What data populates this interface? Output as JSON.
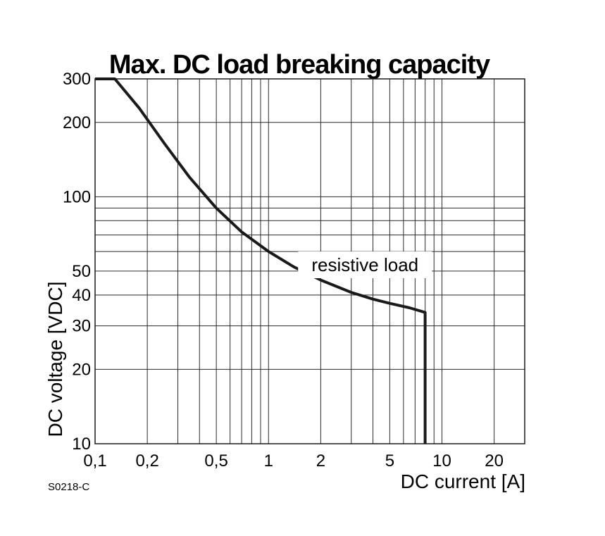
{
  "chart_data": {
    "type": "line",
    "title": "Max. DC load breaking capacity",
    "xlabel": "DC current [A]",
    "ylabel": "DC voltage [VDC]",
    "x_scale": "log",
    "y_scale": "log",
    "xlim": [
      0.1,
      30
    ],
    "ylim": [
      10,
      300
    ],
    "x_ticks": [
      {
        "value": 0.1,
        "label": "0,1"
      },
      {
        "value": 0.2,
        "label": "0,2"
      },
      {
        "value": 0.5,
        "label": "0,5"
      },
      {
        "value": 1,
        "label": "1"
      },
      {
        "value": 2,
        "label": "2"
      },
      {
        "value": 5,
        "label": "5"
      },
      {
        "value": 10,
        "label": "10"
      },
      {
        "value": 20,
        "label": "20"
      }
    ],
    "y_ticks": [
      {
        "value": 10,
        "label": "10"
      },
      {
        "value": 20,
        "label": "20"
      },
      {
        "value": 30,
        "label": "30"
      },
      {
        "value": 40,
        "label": "40"
      },
      {
        "value": 50,
        "label": "50"
      },
      {
        "value": 100,
        "label": "100"
      },
      {
        "value": 200,
        "label": "200"
      },
      {
        "value": 300,
        "label": "300"
      }
    ],
    "x_grid": [
      0.2,
      0.3,
      0.4,
      0.5,
      0.6,
      0.7,
      0.8,
      0.9,
      1,
      2,
      3,
      4,
      5,
      6,
      7,
      8,
      9,
      10,
      20
    ],
    "y_grid": [
      20,
      30,
      40,
      50,
      60,
      70,
      80,
      90,
      100,
      200
    ],
    "grid": true,
    "annotations": [
      {
        "text": "resistive load",
        "x": 3.6,
        "y": 53
      }
    ],
    "series": [
      {
        "x": [
          0.1,
          0.13,
          0.18,
          0.25,
          0.35,
          0.5,
          0.7,
          1.0,
          1.4,
          2.0,
          3.0,
          4.0,
          5.0,
          6.5,
          8.0,
          8.0
        ],
        "y": [
          300,
          300,
          228,
          165,
          120,
          90,
          72,
          60,
          52,
          46,
          41,
          38.5,
          37,
          35.5,
          34,
          10
        ],
        "color": "#1a1a1a"
      }
    ],
    "figure_code": "S0218-C"
  }
}
